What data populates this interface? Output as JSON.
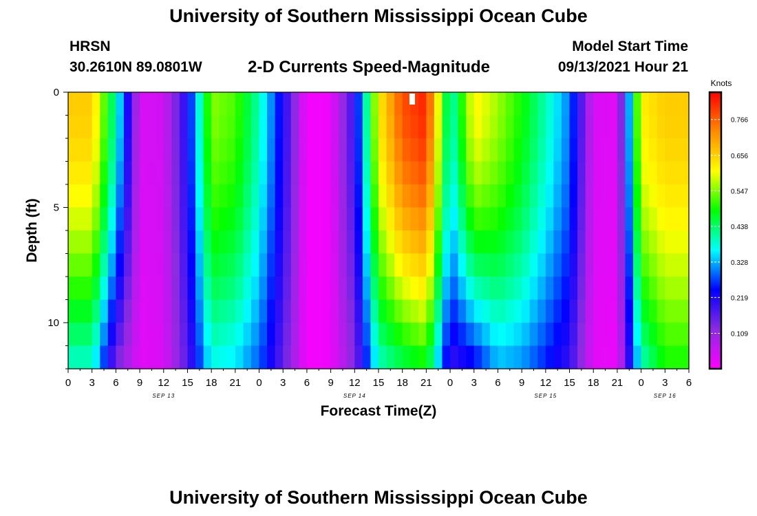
{
  "header": {
    "title": "University of Southern Mississippi Ocean Cube",
    "station": "HRSN",
    "coordinates": "30.2610N  89.0801W",
    "plot_title": "2-D Currents Speed-Magnitude",
    "model_start_label": "Model Start Time",
    "model_start_value": "09/13/2021 Hour 21"
  },
  "footer": {
    "title": "University of Southern Mississippi Ocean Cube"
  },
  "chart_data": {
    "type": "heatmap",
    "title": "2-D Currents Speed-Magnitude",
    "xlabel": "Forecast Time(Z)",
    "ylabel": "Depth (ft)",
    "x_tick_labels": [
      "0",
      "3",
      "6",
      "9",
      "12",
      "15",
      "18",
      "21",
      "0",
      "3",
      "6",
      "9",
      "12",
      "15",
      "18",
      "21",
      "0",
      "3",
      "6",
      "9",
      "12",
      "15",
      "18",
      "21",
      "0",
      "3",
      "6"
    ],
    "date_labels": [
      {
        "label": "SEP 13",
        "hour": 12
      },
      {
        "label": "SEP 14",
        "hour": 36
      },
      {
        "label": "SEP 15",
        "hour": 60
      },
      {
        "label": "SEP 16",
        "hour": 75
      }
    ],
    "xlim_hours": [
      0,
      78
    ],
    "y_ticks": [
      0,
      5,
      10
    ],
    "ylim_ft": [
      0,
      12
    ],
    "colorbar": {
      "title": "Knots",
      "ticks": [
        0.109,
        0.219,
        0.328,
        0.438,
        0.547,
        0.656,
        0.766
      ],
      "range": [
        0,
        0.85
      ],
      "colors": [
        "#ff00ff",
        "#8a2be2",
        "#0000ff",
        "#00ffff",
        "#00ff00",
        "#ffff00",
        "#ff8c00",
        "#ff0000"
      ]
    },
    "depth_levels_ft": [
      0,
      1,
      2,
      3,
      4,
      5,
      6,
      7,
      8,
      9,
      10,
      11
    ],
    "time_hours": [
      0,
      3,
      6,
      9,
      12,
      15,
      18,
      21,
      24,
      27,
      30,
      33,
      36,
      39,
      42,
      45,
      48,
      51,
      54,
      57,
      60,
      63,
      66,
      69,
      72,
      75,
      78
    ],
    "surface_speed_knots": [
      0.66,
      0.66,
      0.4,
      0.04,
      0.05,
      0.22,
      0.55,
      0.52,
      0.4,
      0.22,
      0.01,
      0.02,
      0.2,
      0.62,
      0.78,
      0.82,
      0.38,
      0.62,
      0.56,
      0.49,
      0.4,
      0.3,
      0.04,
      0.03,
      0.62,
      0.66,
      0.66
    ],
    "bottom_speed_knots": [
      0.4,
      0.4,
      0.15,
      0.03,
      0.04,
      0.17,
      0.38,
      0.36,
      0.29,
      0.16,
      0.01,
      0.02,
      0.13,
      0.4,
      0.46,
      0.5,
      0.2,
      0.25,
      0.34,
      0.32,
      0.26,
      0.2,
      0.03,
      0.02,
      0.4,
      0.5,
      0.5
    ]
  }
}
